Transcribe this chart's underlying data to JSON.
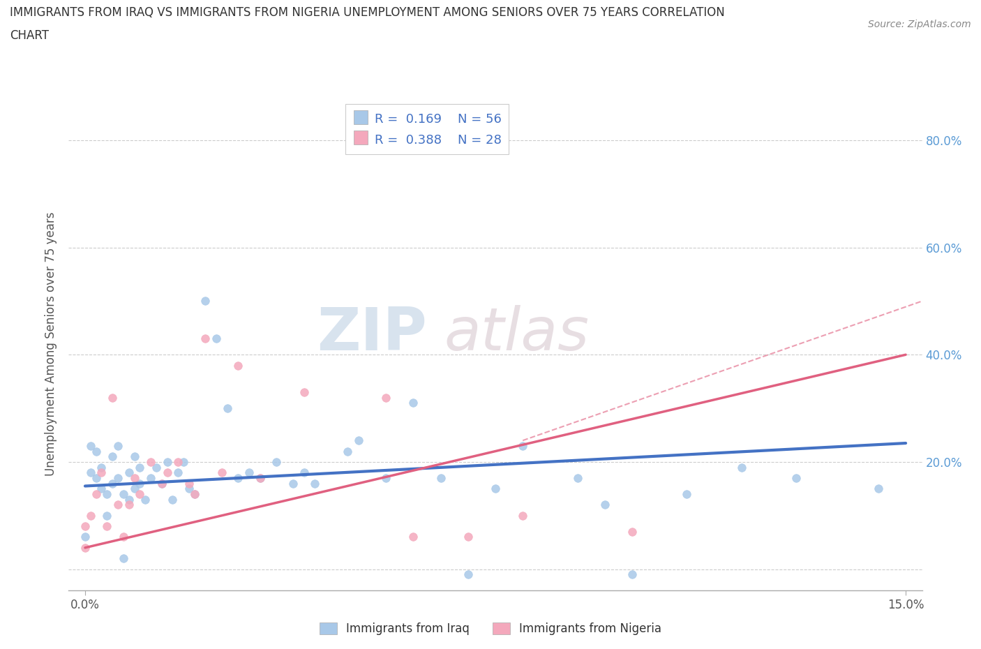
{
  "title_line1": "IMMIGRANTS FROM IRAQ VS IMMIGRANTS FROM NIGERIA UNEMPLOYMENT AMONG SENIORS OVER 75 YEARS CORRELATION",
  "title_line2": "CHART",
  "source": "Source: ZipAtlas.com",
  "xlim": [
    -0.003,
    0.153
  ],
  "ylim": [
    -0.04,
    0.88
  ],
  "iraq_R": 0.169,
  "iraq_N": 56,
  "nigeria_R": 0.388,
  "nigeria_N": 28,
  "iraq_color": "#a8c8e8",
  "nigeria_color": "#f4a8bc",
  "trend_iraq_color": "#4472c4",
  "trend_nigeria_color": "#e06080",
  "legend_label_iraq": "Immigrants from Iraq",
  "legend_label_nigeria": "Immigrants from Nigeria",
  "ytick_vals": [
    0.0,
    0.2,
    0.4,
    0.6,
    0.8
  ],
  "ytick_labels": [
    "",
    "20.0%",
    "40.0%",
    "60.0%",
    "80.0%"
  ],
  "xtick_vals": [
    0.0,
    0.15
  ],
  "xtick_labels": [
    "0.0%",
    "15.0%"
  ],
  "iraq_x": [
    0.0,
    0.001,
    0.001,
    0.002,
    0.002,
    0.003,
    0.003,
    0.004,
    0.004,
    0.005,
    0.005,
    0.006,
    0.006,
    0.007,
    0.007,
    0.008,
    0.008,
    0.009,
    0.009,
    0.01,
    0.01,
    0.011,
    0.012,
    0.013,
    0.014,
    0.015,
    0.016,
    0.017,
    0.018,
    0.019,
    0.02,
    0.022,
    0.024,
    0.026,
    0.028,
    0.03,
    0.032,
    0.035,
    0.038,
    0.04,
    0.042,
    0.048,
    0.05,
    0.055,
    0.06,
    0.065,
    0.07,
    0.075,
    0.08,
    0.09,
    0.095,
    0.1,
    0.11,
    0.12,
    0.13,
    0.145
  ],
  "iraq_y": [
    0.06,
    0.23,
    0.18,
    0.22,
    0.17,
    0.19,
    0.15,
    0.14,
    0.1,
    0.21,
    0.16,
    0.23,
    0.17,
    0.02,
    0.14,
    0.18,
    0.13,
    0.21,
    0.15,
    0.16,
    0.19,
    0.13,
    0.17,
    0.19,
    0.16,
    0.2,
    0.13,
    0.18,
    0.2,
    0.15,
    0.14,
    0.5,
    0.43,
    0.3,
    0.17,
    0.18,
    0.17,
    0.2,
    0.16,
    0.18,
    0.16,
    0.22,
    0.24,
    0.17,
    0.31,
    0.17,
    -0.01,
    0.15,
    0.23,
    0.17,
    0.12,
    -0.01,
    0.14,
    0.19,
    0.17,
    0.15
  ],
  "nigeria_x": [
    0.0,
    0.0,
    0.001,
    0.002,
    0.003,
    0.004,
    0.005,
    0.006,
    0.007,
    0.008,
    0.009,
    0.01,
    0.012,
    0.014,
    0.015,
    0.017,
    0.019,
    0.02,
    0.022,
    0.025,
    0.028,
    0.032,
    0.04,
    0.055,
    0.06,
    0.07,
    0.08,
    0.1
  ],
  "nigeria_y": [
    0.04,
    0.08,
    0.1,
    0.14,
    0.18,
    0.08,
    0.32,
    0.12,
    0.06,
    0.12,
    0.17,
    0.14,
    0.2,
    0.16,
    0.18,
    0.2,
    0.16,
    0.14,
    0.43,
    0.18,
    0.38,
    0.17,
    0.33,
    0.32,
    0.06,
    0.06,
    0.1,
    0.07
  ],
  "trend_iraq_x0": 0.0,
  "trend_iraq_y0": 0.155,
  "trend_iraq_x1": 0.15,
  "trend_iraq_y1": 0.235,
  "trend_nig_x0": 0.0,
  "trend_nig_y0": 0.04,
  "trend_nig_x1": 0.15,
  "trend_nig_y1": 0.4,
  "trend_nig_dash_x1": 0.153,
  "trend_nig_dash_y1": 0.5
}
